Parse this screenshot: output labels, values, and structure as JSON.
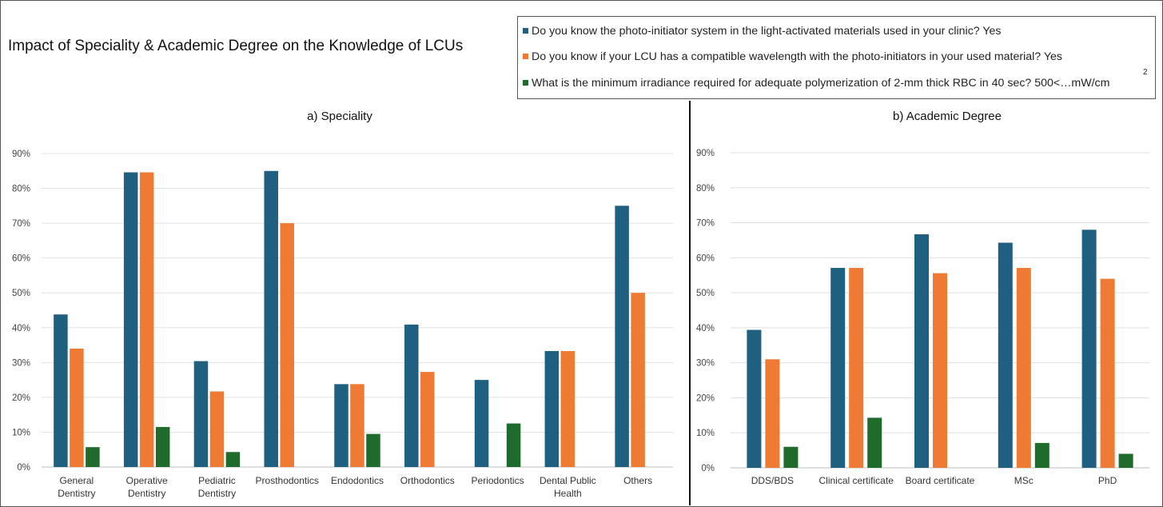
{
  "title": "Impact of Speciality & Academic Degree on the Knowledge of LCUs",
  "legend": [
    {
      "label": "Do you know the photo-initiator system in the light-activated materials used in your clinic? Yes",
      "color": "#1f5f7f"
    },
    {
      "label": "Do you know if your LCU has a compatible wavelength with the photo-initiators in your used material? Yes",
      "color": "#ef7a34"
    },
    {
      "label": "What is the minimum irradiance required for adequate polymerization of 2-mm thick RBC  in 40 sec? 500<…mW/cm",
      "superscript": "2",
      "color": "#1e6b2c"
    }
  ],
  "chart_data": [
    {
      "type": "bar",
      "title": "a) Speciality",
      "categories": [
        [
          "General",
          "Dentistry"
        ],
        [
          "Operative",
          "Dentistry"
        ],
        [
          "Pediatric",
          "Dentistry"
        ],
        [
          "Prosthodontics"
        ],
        [
          "Endodontics"
        ],
        [
          "Orthodontics"
        ],
        [
          "Periodontics"
        ],
        [
          "Dental Public",
          "Health"
        ],
        [
          "Others"
        ]
      ],
      "series": [
        {
          "values": [
            43.8,
            84.6,
            30.4,
            85.0,
            23.8,
            40.9,
            25.0,
            33.3,
            75.0
          ]
        },
        {
          "values": [
            34.0,
            84.6,
            21.7,
            70.0,
            23.8,
            27.3,
            0,
            33.3,
            50.0
          ]
        },
        {
          "values": [
            5.7,
            11.5,
            4.3,
            0,
            9.5,
            0,
            12.5,
            0,
            0
          ]
        }
      ],
      "yticks": [
        "0%",
        "10%",
        "20%",
        "30%",
        "40%",
        "50%",
        "60%",
        "70%",
        "80%",
        "90%"
      ],
      "ylim": [
        0,
        90
      ],
      "grid": true
    },
    {
      "type": "bar",
      "title": "b) Academic Degree",
      "categories": [
        [
          "DDS/BDS"
        ],
        [
          "Clinical certificate"
        ],
        [
          "Board certificate"
        ],
        [
          "MSc"
        ],
        [
          "PhD"
        ]
      ],
      "series": [
        {
          "values": [
            39.4,
            57.1,
            66.7,
            64.3,
            68.0
          ]
        },
        {
          "values": [
            31.0,
            57.1,
            55.6,
            57.1,
            54.0
          ]
        },
        {
          "values": [
            6.0,
            14.3,
            0,
            7.1,
            4.0
          ]
        }
      ],
      "yticks": [
        "0%",
        "10%",
        "20%",
        "30%",
        "40%",
        "50%",
        "60%",
        "70%",
        "80%",
        "90%"
      ],
      "ylim": [
        0,
        90
      ],
      "grid": true
    }
  ]
}
